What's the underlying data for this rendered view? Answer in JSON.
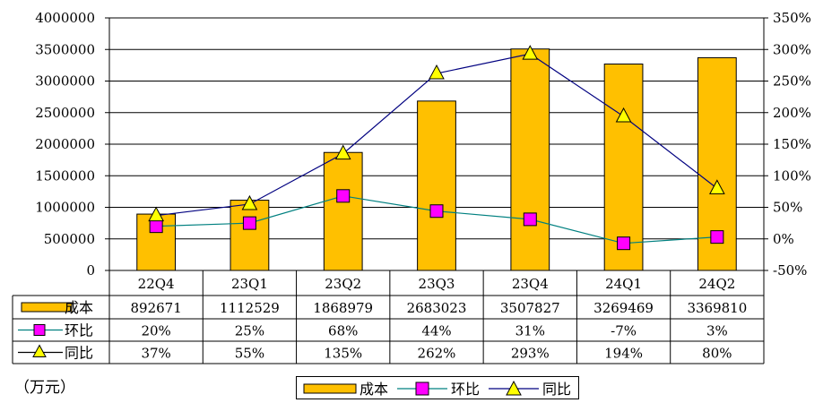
{
  "colors": {
    "bar": "#FFC000",
    "bar_edge": "#000000",
    "hb_line": "#008080",
    "hb_marker": "#FF00FF",
    "tb_line": "#000080",
    "tb_marker": "#FFFF00"
  },
  "chart_data": {
    "type": "bar",
    "categories": [
      "22Q4",
      "23Q1",
      "23Q2",
      "23Q3",
      "23Q4",
      "24Q1",
      "24Q2"
    ],
    "series": [
      {
        "name": "成本",
        "type": "bar",
        "axis": "left",
        "values": [
          892671,
          1112529,
          1868979,
          2683023,
          3507827,
          3269469,
          3369810
        ]
      },
      {
        "name": "环比",
        "type": "line",
        "axis": "right",
        "values": [
          20,
          25,
          68,
          44,
          31,
          -7,
          3
        ]
      },
      {
        "name": "同比",
        "type": "line",
        "axis": "right",
        "values": [
          37,
          55,
          135,
          262,
          293,
          194,
          80
        ]
      }
    ],
    "left_axis": {
      "ylim": [
        0,
        4000000
      ],
      "ticks": [
        "0",
        "500000",
        "1000000",
        "1500000",
        "2000000",
        "2500000",
        "3000000",
        "3500000",
        "4000000"
      ]
    },
    "right_axis": {
      "ylim": [
        -50,
        350
      ],
      "ticks": [
        "-50%",
        "0%",
        "50%",
        "100%",
        "150%",
        "200%",
        "250%",
        "300%",
        "350%"
      ]
    },
    "table": {
      "rows": [
        {
          "label": "成本",
          "cells": [
            "892671",
            "1112529",
            "1868979",
            "2683023",
            "3507827",
            "3269469",
            "3369810"
          ]
        },
        {
          "label": "环比",
          "cells": [
            "20%",
            "25%",
            "68%",
            "44%",
            "31%",
            "-7%",
            "3%"
          ]
        },
        {
          "label": "同比",
          "cells": [
            "37%",
            "55%",
            "135%",
            "262%",
            "293%",
            "194%",
            "80%"
          ]
        }
      ]
    },
    "unit_label": "（万元）",
    "legend": [
      "成本",
      "环比",
      "同比"
    ],
    "grid": true
  }
}
